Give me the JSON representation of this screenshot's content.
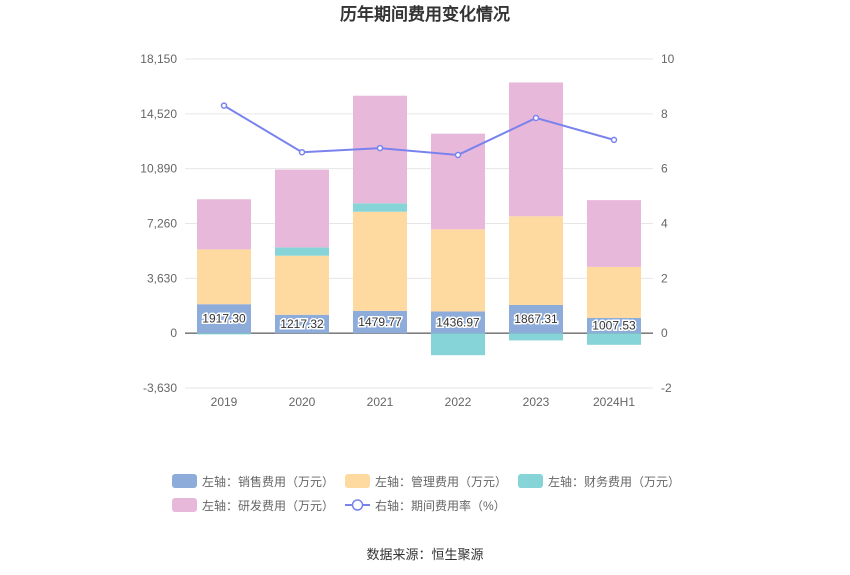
{
  "chart_data": {
    "type": "bar",
    "title": "历年期间费用变化情况",
    "source": "数据来源：恒生聚源",
    "categories": [
      "2019",
      "2020",
      "2021",
      "2022",
      "2023",
      "2024H1"
    ],
    "left_axis": {
      "ylim": [
        -3630,
        18150
      ],
      "ticks": [
        "18,150",
        "14,520",
        "10,890",
        "7,260",
        "3,630",
        "0",
        "-3,630"
      ],
      "tick_values": [
        18150,
        14520,
        10890,
        7260,
        3630,
        0,
        -3630
      ]
    },
    "right_axis": {
      "ylim": [
        -2,
        10
      ],
      "ticks": [
        "10",
        "8",
        "6",
        "4",
        "2",
        "0",
        "-2"
      ],
      "tick_values": [
        10,
        8,
        6,
        4,
        2,
        0,
        -2
      ]
    },
    "series": [
      {
        "name": "左轴：销售费用（万元）",
        "kind": "bar",
        "color": "#8eacd9",
        "values": [
          1917.3,
          1217.32,
          1479.77,
          1436.97,
          1867.31,
          1007.53
        ],
        "labels": [
          "1917.30",
          "1217.32",
          "1479.77",
          "1436.97",
          "1867.31",
          "1007.53"
        ]
      },
      {
        "name": "左轴：管理费用（万元）",
        "kind": "bar",
        "color": "#ffdaa0",
        "values": [
          3630,
          3910,
          6560,
          5440,
          5870,
          3380
        ]
      },
      {
        "name": "左轴：财务费用（万元）",
        "kind": "bar",
        "color": "#87d4d8",
        "values": [
          -80,
          550,
          560,
          -1460,
          -480,
          -770
        ]
      },
      {
        "name": "左轴：研发费用（万元）",
        "kind": "bar",
        "color": "#e8b8da",
        "values": [
          3320,
          5150,
          7120,
          6330,
          8860,
          4420
        ]
      },
      {
        "name": "右轴：期间费用率（%）",
        "kind": "line",
        "color": "#7a82ee",
        "values": [
          8.3,
          6.6,
          6.75,
          6.5,
          7.85,
          7.05
        ]
      }
    ],
    "legend_position": "bottom",
    "grid": true
  }
}
